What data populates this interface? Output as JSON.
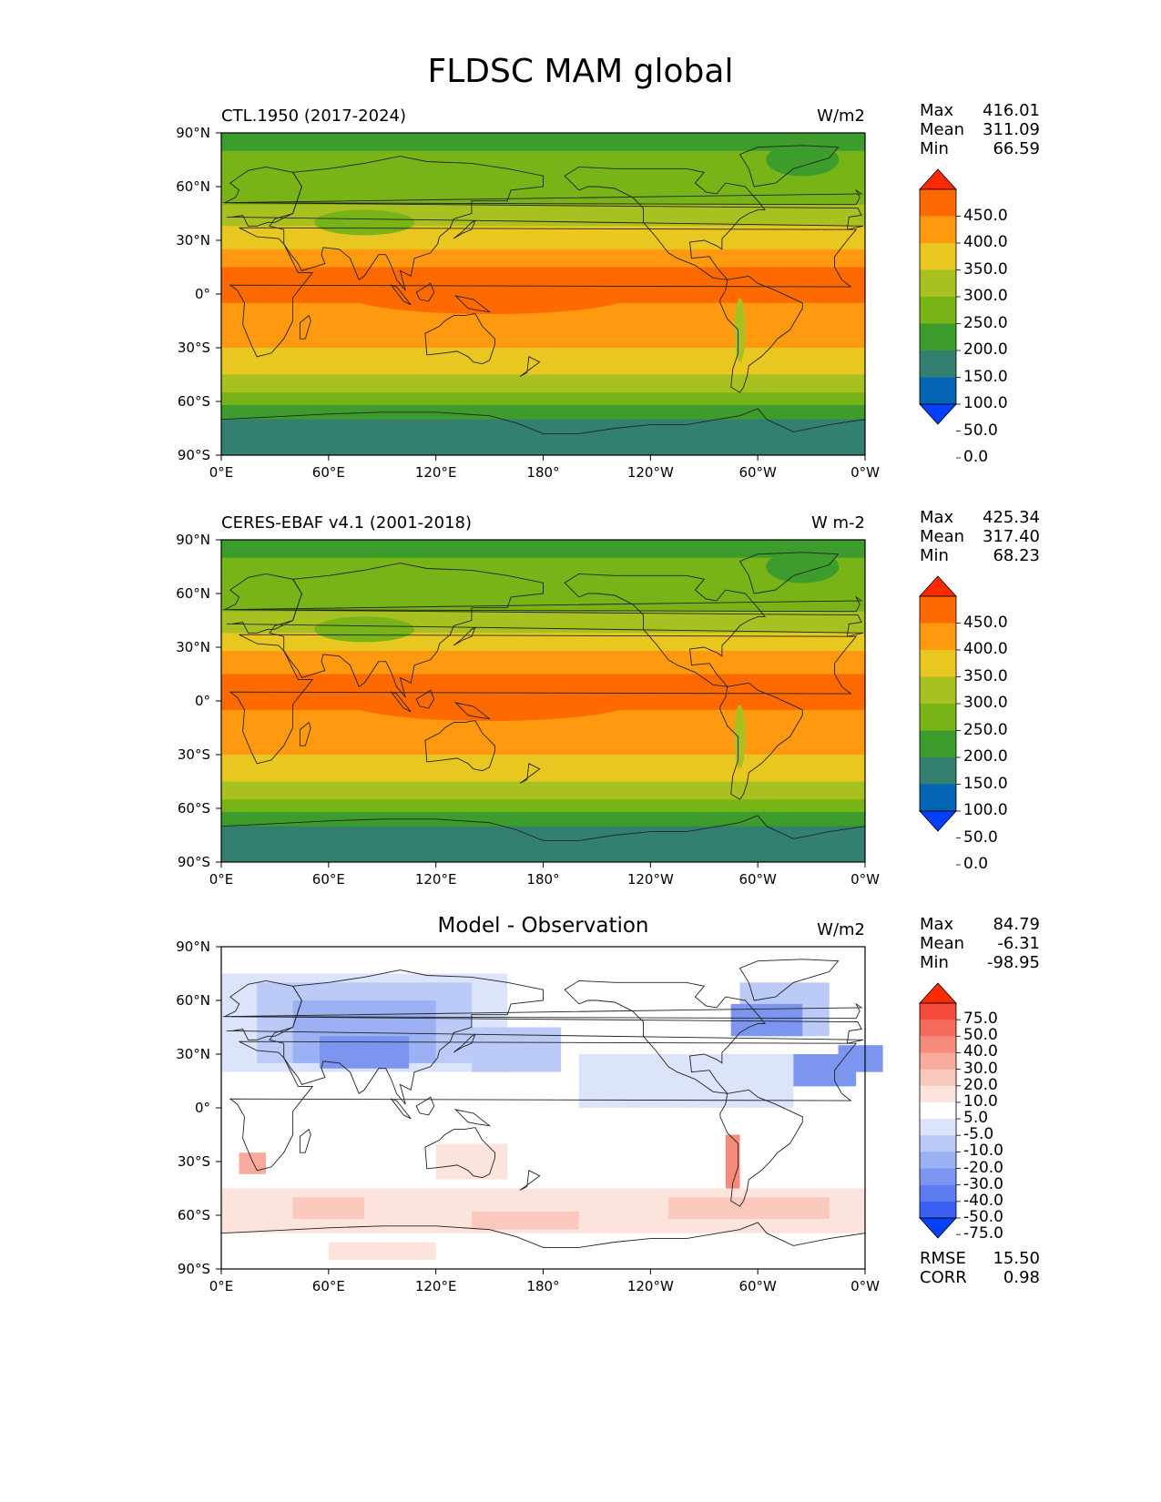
{
  "figure": {
    "title": "FLDSC MAM global"
  },
  "axes": {
    "lat_ticks": [
      "90°N",
      "60°N",
      "30°N",
      "0°",
      "30°S",
      "60°S",
      "90°S"
    ],
    "lon_ticks": [
      "0°E",
      "60°E",
      "120°E",
      "180°",
      "120°W",
      "60°W",
      "0°W"
    ]
  },
  "panels": [
    {
      "id": "model",
      "title": "CTL.1950 (2017-2024)",
      "units": "W/m2",
      "stats": [
        {
          "label": "Max",
          "value": "416.01"
        },
        {
          "label": "Mean",
          "value": "311.09"
        },
        {
          "label": "Min",
          "value": "66.59"
        }
      ],
      "colorbar": {
        "labels": [
          "450.0",
          "400.0",
          "350.0",
          "300.0",
          "250.0",
          "200.0",
          "150.0",
          "100.0",
          "50.0",
          "0.0"
        ],
        "colors": [
          "#ff2a00",
          "#ff6a00",
          "#ff9a10",
          "#e8c820",
          "#a8c020",
          "#78b418",
          "#3c9c2c",
          "#348070",
          "#0464b4",
          "#0640ff"
        ]
      }
    },
    {
      "id": "obs",
      "title": "CERES-EBAF v4.1 (2001-2018)",
      "units": "W m-2",
      "stats": [
        {
          "label": "Max",
          "value": "425.34"
        },
        {
          "label": "Mean",
          "value": "317.40"
        },
        {
          "label": "Min",
          "value": "68.23"
        }
      ],
      "colorbar": {
        "labels": [
          "450.0",
          "400.0",
          "350.0",
          "300.0",
          "250.0",
          "200.0",
          "150.0",
          "100.0",
          "50.0",
          "0.0"
        ],
        "colors": [
          "#ff2a00",
          "#ff6a00",
          "#ff9a10",
          "#e8c820",
          "#a8c020",
          "#78b418",
          "#3c9c2c",
          "#348070",
          "#0464b4",
          "#0640ff"
        ]
      }
    },
    {
      "id": "diff",
      "title": "Model - Observation",
      "units": "W/m2",
      "stats": [
        {
          "label": "Max",
          "value": "84.79"
        },
        {
          "label": "Mean",
          "value": "-6.31"
        },
        {
          "label": "Min",
          "value": "-98.95"
        }
      ],
      "extra_stats": [
        {
          "label": "RMSE",
          "value": "15.50"
        },
        {
          "label": "CORR",
          "value": "0.98"
        }
      ],
      "colorbar": {
        "labels": [
          "75.0",
          "50.0",
          "40.0",
          "30.0",
          "20.0",
          "10.0",
          "5.0",
          "-5.0",
          "-10.0",
          "-20.0",
          "-30.0",
          "-40.0",
          "-50.0",
          "-75.0"
        ],
        "colors": [
          "#ff2a00",
          "#f24a3c",
          "#f46a5c",
          "#f68a7c",
          "#f8aa9c",
          "#fac8bc",
          "#fce4dc",
          "#ffffff",
          "#dce4fc",
          "#bccaf8",
          "#9cb0f4",
          "#7c96f0",
          "#5c7cf0",
          "#3c60f4",
          "#0640ff"
        ]
      }
    }
  ]
}
